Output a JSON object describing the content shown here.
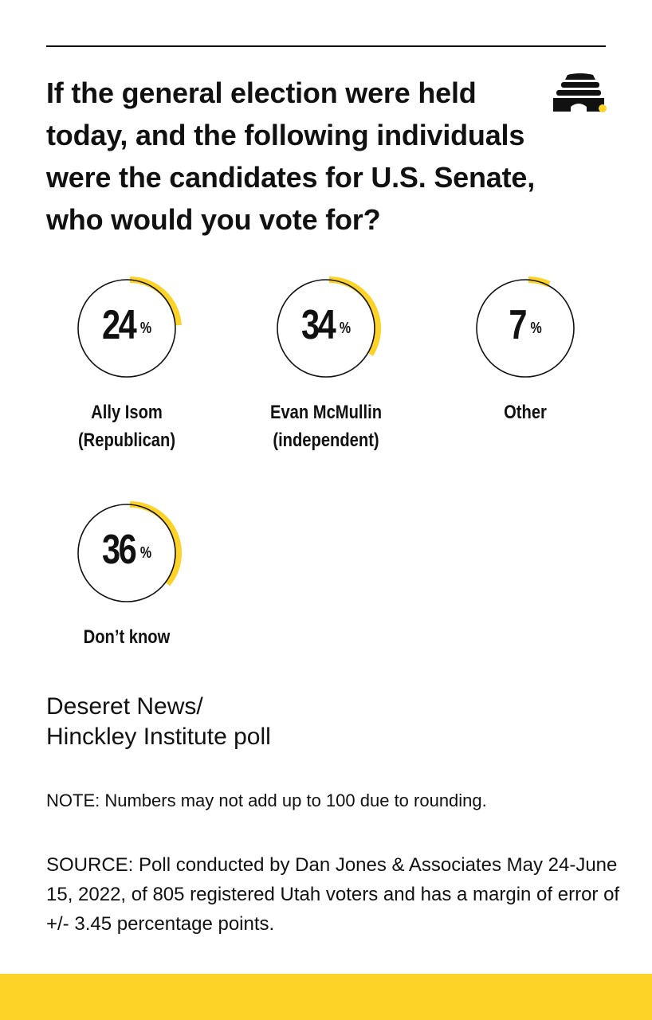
{
  "colors": {
    "accent": "#fdd327",
    "ink": "#111111",
    "background": "#ffffff"
  },
  "header": {
    "title": "If the general election were held today, and the following individuals were the candidates for U.S. Senate, who would you vote for?",
    "logo_icon": "beehive-icon"
  },
  "chart_data": {
    "type": "pie",
    "title": "If the general election were held today, and the following individuals were the candidates for U.S. Senate, who would you vote for?",
    "unit": "%",
    "categories": [
      "Ally Isom\n(Republican)",
      "Evan McMullin\n(independent)",
      "Other",
      "Don’t know"
    ],
    "values": [
      24,
      34,
      7,
      36
    ]
  },
  "stats": [
    {
      "value": "24",
      "unit": "%",
      "label": "Ally Isom\n(Republican)"
    },
    {
      "value": "34",
      "unit": "%",
      "label": "Evan McMullin\n(independent)"
    },
    {
      "value": "7",
      "unit": "%",
      "label": "Other"
    },
    {
      "value": "36",
      "unit": "%",
      "label": "Don’t know"
    }
  ],
  "footer": {
    "source_name": "Deseret News/\nHinckley Institute poll",
    "note": "NOTE: Numbers may not add up to 100 due to rounding.",
    "source": "SOURCE: Poll conducted by Dan Jones & Associates May 24-June 15, 2022, of 805 registered Utah voters and has a margin of error of +/- 3.45 percentage points."
  }
}
